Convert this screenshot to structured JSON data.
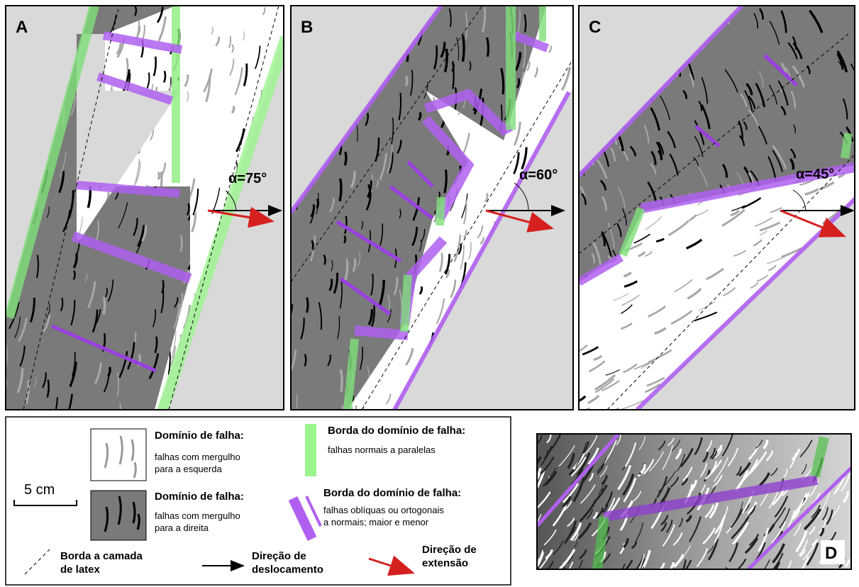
{
  "panels": [
    {
      "label": "A",
      "angle": "α=75°"
    },
    {
      "label": "B",
      "angle": "α=60°"
    },
    {
      "label": "C",
      "angle": "α=45°"
    },
    {
      "label": "D"
    }
  ],
  "legend": {
    "scale": "5 cm",
    "left_domain": {
      "title": "Domínio de falha:",
      "lines": [
        "falhas com mergulho",
        "para a esquerda"
      ]
    },
    "right_domain": {
      "title": "Domínio de falha:",
      "lines": [
        "falhas com mergulho",
        "para a direita"
      ]
    },
    "normal_border": {
      "title": "Borda do domínio de falha:",
      "lines": [
        "falhas normais a paralelas"
      ]
    },
    "oblique_border": {
      "title": "Borda do domínio de falha:",
      "lines": [
        "falhas oblíquas ou ortogonais",
        "a normais; maior e menor"
      ]
    },
    "latex_border": {
      "lines": [
        "Borda a camada",
        "de latex"
      ]
    },
    "displacement": {
      "lines": [
        "Direção de",
        "deslocamento"
      ]
    },
    "extension": {
      "lines": [
        "Direção de",
        "extensão"
      ]
    }
  }
}
